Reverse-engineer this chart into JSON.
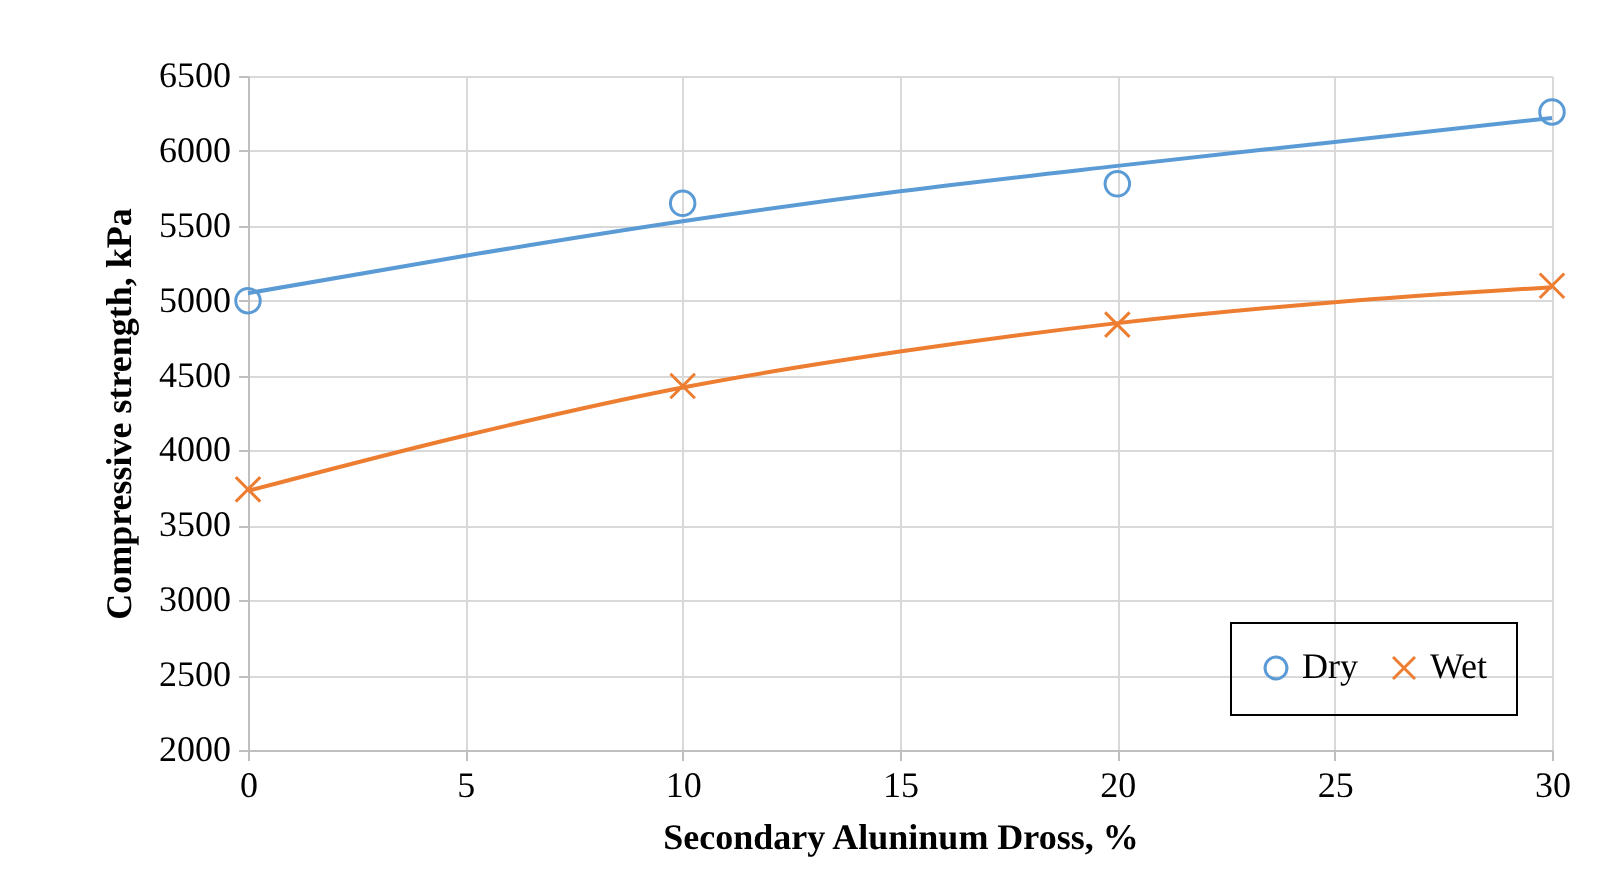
{
  "chart_data": {
    "type": "scatter",
    "xlabel": "Secondary Aluninum Dross, %",
    "ylabel": "Compressive strength, kPa",
    "xlim": [
      0,
      30
    ],
    "xticks": [
      0,
      5,
      10,
      15,
      20,
      25,
      30
    ],
    "ylim": [
      2000,
      6500
    ],
    "yticks": [
      2000,
      2500,
      3000,
      3500,
      4000,
      4500,
      5000,
      5500,
      6000,
      6500
    ],
    "grid": true,
    "legend": "bottom right",
    "series": [
      {
        "name": "Dry",
        "marker": "circle",
        "color": "#5b9bd5",
        "x": [
          0,
          10,
          20,
          30
        ],
        "values": [
          5000,
          5650,
          5780,
          6260
        ]
      },
      {
        "name": "Wet",
        "marker": "cross",
        "color": "#ed7d31",
        "x": [
          0,
          10,
          20,
          30
        ],
        "values": [
          3740,
          4430,
          4840,
          5100
        ]
      },
      {
        "type": "line",
        "color": "#5b9bd5",
        "x": [
          0,
          5,
          10,
          15,
          20,
          25,
          30
        ],
        "values": [
          5050,
          5300,
          5530,
          5730,
          5900,
          6060,
          6220
        ]
      },
      {
        "type": "line",
        "color": "#ed7d31",
        "x": [
          0,
          5,
          10,
          15,
          20,
          25,
          30
        ],
        "values": [
          3730,
          4100,
          4420,
          4660,
          4850,
          4990,
          5090
        ]
      }
    ]
  }
}
